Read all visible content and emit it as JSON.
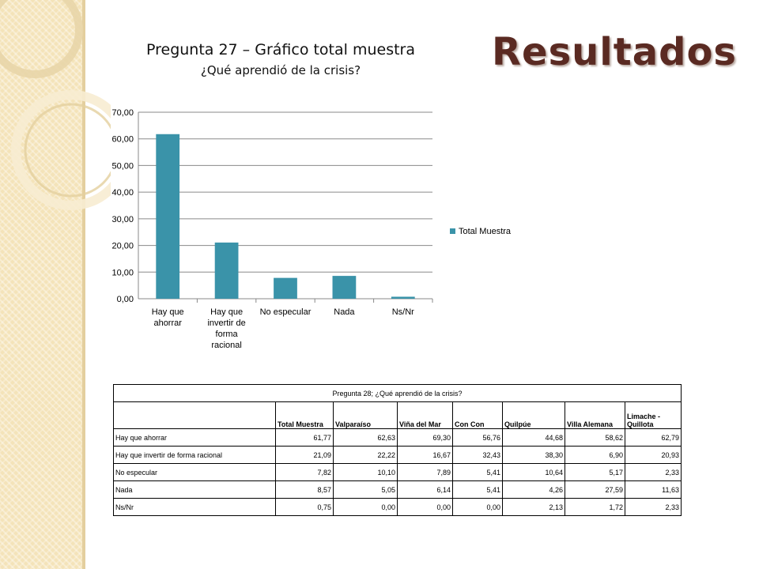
{
  "slide": {
    "title": "Resultados"
  },
  "chart_data": {
    "type": "bar",
    "title": "Pregunta 27 – Gráfico total muestra",
    "subtitle": "¿Qué aprendió de la crisis?",
    "categories": [
      "Hay que ahorrar",
      "Hay que invertir de forma racional",
      "No especular",
      "Nada",
      "Ns/Nr"
    ],
    "category_lines": [
      [
        "Hay que",
        "ahorrar"
      ],
      [
        "Hay que",
        "invertir de",
        "forma",
        "racional"
      ],
      [
        "No especular"
      ],
      [
        "Nada"
      ],
      [
        "Ns/Nr"
      ]
    ],
    "series": [
      {
        "name": "Total Muestra",
        "values": [
          61.77,
          21.09,
          7.82,
          8.57,
          0.75
        ],
        "color": "#3a93a9"
      }
    ],
    "ylim": [
      0,
      70
    ],
    "yticks": [
      "0,00",
      "10,00",
      "20,00",
      "30,00",
      "40,00",
      "50,00",
      "60,00",
      "70,00"
    ],
    "grid": true,
    "legend_position": "right"
  },
  "table": {
    "caption": "Pregunta 28; ¿Qué aprendió de la crisis?",
    "headers": [
      "",
      "Total Muestra",
      "Valparaíso",
      "Viña del Mar",
      "Con Con",
      "Quilpúe",
      "Villa Alemana",
      "Limache - Quillota"
    ],
    "rows": [
      {
        "label": "Hay que ahorrar",
        "values": [
          "61,77",
          "62,63",
          "69,30",
          "56,76",
          "44,68",
          "58,62",
          "62,79"
        ]
      },
      {
        "label": "Hay que invertir de forma racional",
        "values": [
          "21,09",
          "22,22",
          "16,67",
          "32,43",
          "38,30",
          "6,90",
          "20,93"
        ]
      },
      {
        "label": "No especular",
        "values": [
          "7,82",
          "10,10",
          "7,89",
          "5,41",
          "10,64",
          "5,17",
          "2,33"
        ]
      },
      {
        "label": "Nada",
        "values": [
          "8,57",
          "5,05",
          "6,14",
          "5,41",
          "4,26",
          "27,59",
          "11,63"
        ]
      },
      {
        "label": "Ns/Nr",
        "values": [
          "0,75",
          "0,00",
          "0,00",
          "0,00",
          "2,13",
          "1,72",
          "2,33"
        ]
      }
    ]
  },
  "colors": {
    "sidebar": "#f4e3b9",
    "title": "#5a2a22",
    "bar": "#3a93a9"
  }
}
